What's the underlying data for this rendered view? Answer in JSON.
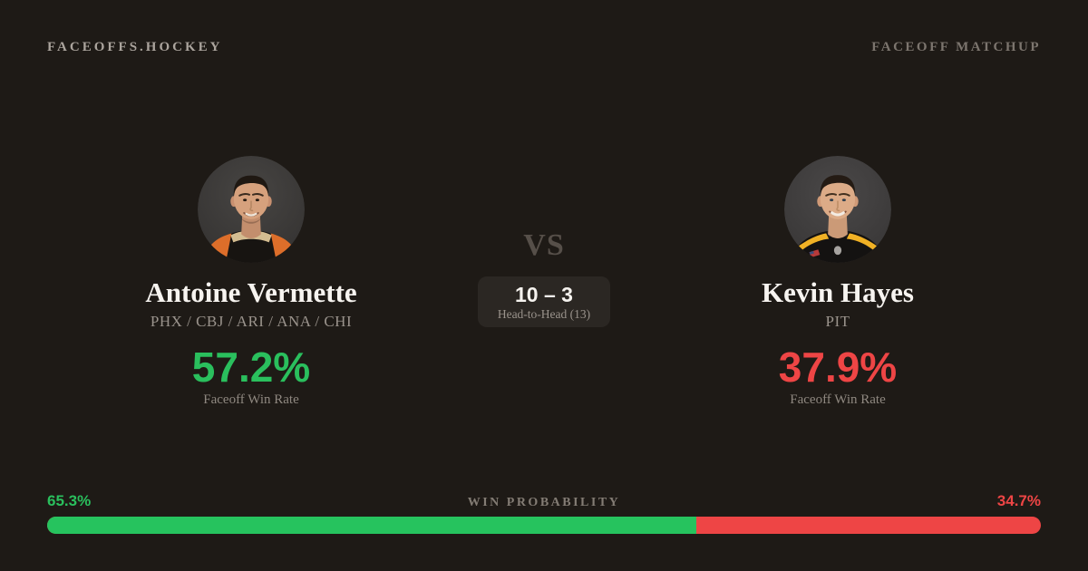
{
  "page": {
    "background": "#1e1a16",
    "green": "#26c35e",
    "red": "#ee4545"
  },
  "header": {
    "brand": "FACEOFFS.HOCKEY",
    "page_label": "FACEOFF MATCHUP"
  },
  "players": {
    "left": {
      "name": "Antoine Vermette",
      "teams": "PHX / CBJ / ARI / ANA / CHI",
      "win_rate": "57.2%",
      "win_rate_label": "Faceoff Win Rate",
      "accent": "#2abf5d",
      "avatar": "player-photo-antoine-vermette"
    },
    "right": {
      "name": "Kevin Hayes",
      "teams": "PIT",
      "win_rate": "37.9%",
      "win_rate_label": "Faceoff Win Rate",
      "accent": "#ee4545",
      "avatar": "player-photo-kevin-hayes"
    }
  },
  "versus": {
    "label": "VS",
    "score": "10 – 3",
    "sub": "Head-to-Head (13)"
  },
  "win_probability": {
    "title": "WIN PROBABILITY",
    "left_label": "65.3%",
    "right_label": "34.7%",
    "left_value": 65.3,
    "right_value": 34.7,
    "left_color": "#26c35e",
    "right_color": "#ee4545"
  }
}
